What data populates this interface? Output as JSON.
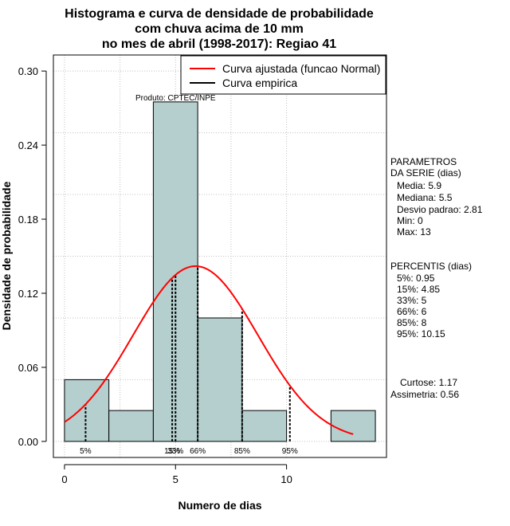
{
  "title_lines": [
    "Histograma e curva de densidade de probabilidade",
    "com chuva acima de 10 mm",
    "no mes de abril (1998-2017): Regiao 41"
  ],
  "chart_data": {
    "type": "bar",
    "subtype": "histogram",
    "xlabel": "Numero de dias",
    "ylabel": "Densidade de probabilidade",
    "xlim": [
      -0.5,
      14.5
    ],
    "ylim": [
      -0.013,
      0.313
    ],
    "x_ticks": [
      0,
      5,
      10
    ],
    "x_tick_labels": [
      "0",
      "5",
      "10"
    ],
    "y_ticks": [
      0.0,
      0.06,
      0.12,
      0.18,
      0.24,
      0.3
    ],
    "y_tick_labels": [
      "0.00",
      "0.06",
      "0.12",
      "0.18",
      "0.24",
      "0.30"
    ],
    "bins": [
      {
        "x0": 0,
        "x1": 2,
        "density": 0.05
      },
      {
        "x0": 2,
        "x1": 4,
        "density": 0.025
      },
      {
        "x0": 4,
        "x1": 6,
        "density": 0.275
      },
      {
        "x0": 6,
        "x1": 8,
        "density": 0.1
      },
      {
        "x0": 8,
        "x1": 10,
        "density": 0.025
      },
      {
        "x0": 10,
        "x1": 12,
        "density": 0
      },
      {
        "x0": 12,
        "x1": 14,
        "density": 0.025
      }
    ],
    "normal_fit": {
      "mean": 5.9,
      "sd": 2.81,
      "x_from": 0,
      "x_to": 13
    },
    "percentile_markers": [
      {
        "label": "5%",
        "x": 0.95
      },
      {
        "label": "15%",
        "x": 4.85
      },
      {
        "label": "33%",
        "x": 5
      },
      {
        "label": "66%",
        "x": 6
      },
      {
        "label": "85%",
        "x": 8
      },
      {
        "label": "95%",
        "x": 10.15
      }
    ],
    "bar_annotation": "Produto: CPTEC/INPE",
    "legend": {
      "placement": "top-right",
      "entries": [
        {
          "label": "Curva ajustada (funcao Normal)",
          "color": "#ff0000"
        },
        {
          "label": "Curva empirica",
          "color": "#000000"
        }
      ]
    },
    "grid": true
  },
  "side_panel": {
    "parametros_title": [
      "PARAMETROS",
      "DA SERIE (dias)"
    ],
    "parametros": [
      "Media: 5.9",
      "Mediana: 5.5",
      "Desvio padrao: 2.81",
      "Min: 0",
      "Max: 13"
    ],
    "percentis_title": "PERCENTIS (dias)",
    "percentis": [
      "5%: 0.95",
      "15%: 4.85",
      "33%: 5",
      "66%: 6",
      "85%: 8",
      "95%: 10.15"
    ],
    "curtose": "Curtose: 1.17",
    "assimetria": "Assimetria: 0.56"
  },
  "colors": {
    "bar_fill": "#b4cfce",
    "curve": "#ff0000",
    "grid": "#c0c0c0"
  }
}
